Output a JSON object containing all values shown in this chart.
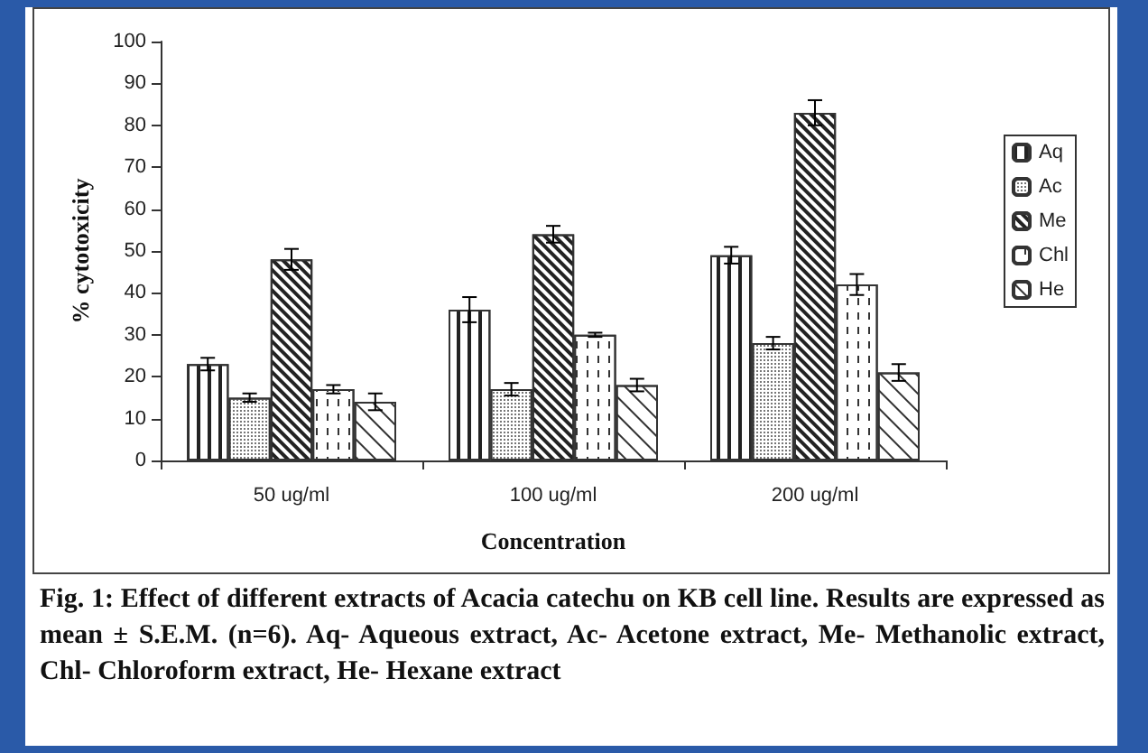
{
  "chart_data": {
    "type": "bar",
    "xlabel": "Concentration",
    "ylabel": "% cytotoxicity",
    "categories": [
      "50 ug/ml",
      "100 ug/ml",
      "200 ug/ml"
    ],
    "series": [
      {
        "name": "Aq",
        "color": "#ffffff",
        "values": [
          23,
          36,
          49
        ],
        "errors": [
          1.5,
          3,
          2
        ]
      },
      {
        "name": "Ac",
        "color": "#ffffff",
        "values": [
          15,
          17,
          28
        ],
        "errors": [
          1,
          1.5,
          1.5
        ]
      },
      {
        "name": "Me",
        "color": "#ffffff",
        "values": [
          48,
          54,
          83
        ],
        "errors": [
          2.5,
          2,
          3
        ]
      },
      {
        "name": "Chl",
        "color": "#ffffff",
        "values": [
          17,
          30,
          42
        ],
        "errors": [
          1,
          0.5,
          2.5
        ]
      },
      {
        "name": "He",
        "color": "#ffffff",
        "values": [
          14,
          18,
          21
        ],
        "errors": [
          2,
          1.5,
          2
        ]
      }
    ],
    "ylim": [
      0,
      100
    ],
    "yticks": [
      0,
      10,
      20,
      30,
      40,
      50,
      60,
      70,
      80,
      90,
      100
    ],
    "grid": false,
    "legend": "right",
    "annotations": [
      "Fig. 1: Effect of different extracts of Acacia catechu on KB cell line. Results are expressed as mean ± S.E.M. (n=6). Aq- Aqueous extract, Ac- Acetone extract, Me- Methanolic extract, Chl- Chloroform extract, He- Hexane extract"
    ]
  }
}
